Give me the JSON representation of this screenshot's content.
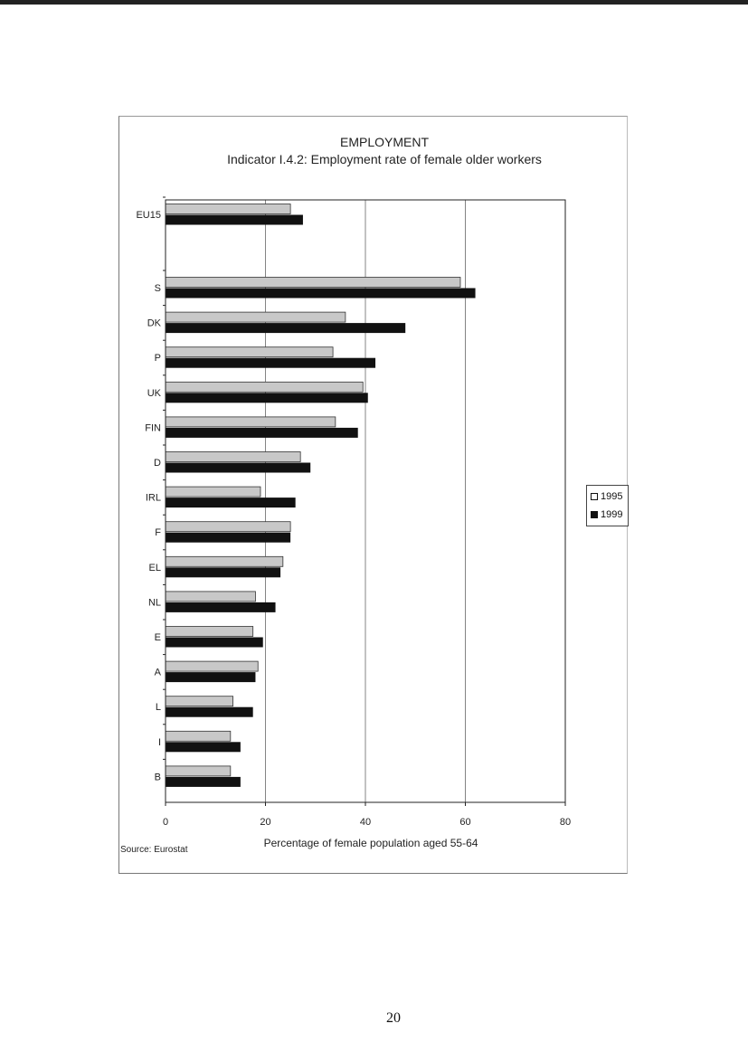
{
  "page": {
    "number": "20"
  },
  "source": "Source: Eurostat",
  "colors": {
    "s1995_fill": "#c8c8c8",
    "s1995_stroke": "#333333",
    "s1999_fill": "#111111"
  },
  "chart_data": {
    "type": "bar",
    "orientation": "horizontal",
    "title": "EMPLOYMENT",
    "subtitle": "Indicator I.4.2: Employment rate of female older workers",
    "xlabel": "Percentage of female population aged 55-64",
    "ylabel": "",
    "xlim": [
      0,
      80
    ],
    "xticks": [
      0,
      20,
      40,
      60,
      80
    ],
    "grid": "vertical",
    "legend_position": "right",
    "categories": [
      "EU15",
      "S",
      "DK",
      "P",
      "UK",
      "FIN",
      "D",
      "IRL",
      "F",
      "EL",
      "NL",
      "E",
      "A",
      "L",
      "I",
      "B"
    ],
    "series": [
      {
        "name": "1995",
        "values": [
          25,
          59,
          36,
          33.5,
          39.5,
          34,
          27,
          19,
          25,
          23.5,
          18,
          17.5,
          18.5,
          13.5,
          13,
          13
        ]
      },
      {
        "name": "1999",
        "values": [
          27.5,
          62,
          48,
          42,
          40.5,
          38.5,
          29,
          26,
          25,
          23,
          22,
          19.5,
          18,
          17.5,
          15,
          15
        ]
      }
    ]
  }
}
